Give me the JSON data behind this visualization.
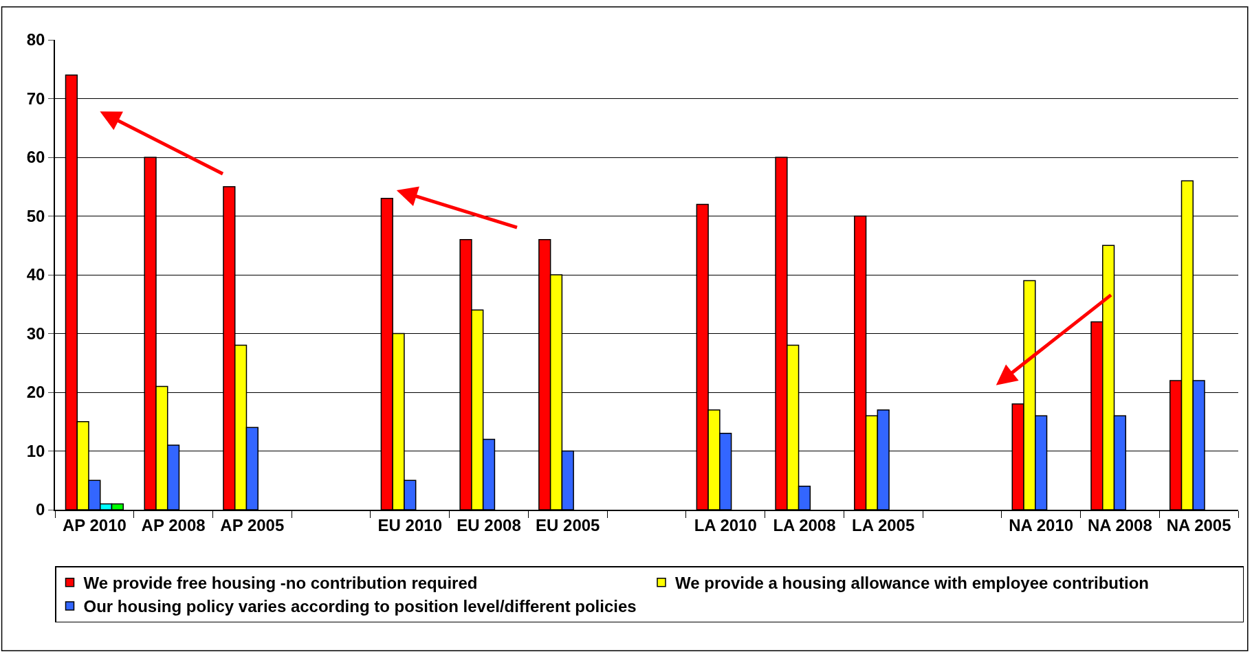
{
  "chart_data": {
    "type": "bar",
    "categories": [
      "AP 2010",
      "AP 2008",
      "AP 2005",
      null,
      "EU 2010",
      "EU 2008",
      "EU 2005",
      null,
      "LA 2010",
      "LA 2008",
      "LA 2005",
      null,
      "NA 2010",
      "NA 2008",
      "NA 2005"
    ],
    "series": [
      {
        "name": "We provide free housing -no contribution required",
        "color": "#ff0000",
        "values": [
          74,
          60,
          55,
          null,
          53,
          46,
          46,
          null,
          52,
          60,
          50,
          null,
          18,
          32,
          22
        ]
      },
      {
        "name": "We provide a housing allowance with employee contribution",
        "color": "#ffff00",
        "values": [
          15,
          21,
          28,
          null,
          30,
          34,
          40,
          null,
          17,
          28,
          16,
          null,
          39,
          45,
          56
        ]
      },
      {
        "name": "Our housing policy varies according to position level/different policies",
        "color": "#3366ff",
        "values": [
          5,
          11,
          14,
          null,
          5,
          12,
          10,
          null,
          13,
          4,
          17,
          null,
          16,
          16,
          22
        ]
      },
      {
        "color": "#00ffff",
        "values": [
          1,
          null,
          null,
          null,
          null,
          null,
          null,
          null,
          null,
          null,
          null,
          null,
          null,
          null,
          null
        ]
      },
      {
        "color": "#00ff00",
        "values": [
          1,
          null,
          null,
          null,
          null,
          null,
          null,
          null,
          null,
          null,
          null,
          null,
          null,
          null,
          null
        ]
      }
    ],
    "ylim": [
      0,
      80
    ],
    "yticks": [
      0,
      10,
      20,
      30,
      40,
      50,
      60,
      70,
      80
    ],
    "grid": "y",
    "legend": "bottom"
  }
}
